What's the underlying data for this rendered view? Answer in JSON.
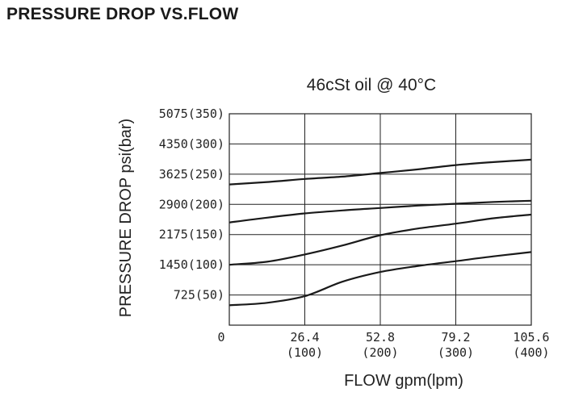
{
  "page": {
    "title": "PRESSURE DROP VS.FLOW"
  },
  "chart_data": {
    "type": "line",
    "title": "46cSt oil @ 40°C",
    "xlabel": "FLOW gpm(lpm)",
    "ylabel": "PRESSURE DROP psi(bar)",
    "xlim": [
      0,
      400
    ],
    "ylim": [
      0,
      350
    ],
    "grid": true,
    "legend": "none",
    "x_ticks": [
      {
        "value": 0,
        "primary": "0",
        "secondary": ""
      },
      {
        "value": 100,
        "primary": "26.4",
        "secondary": "(100)"
      },
      {
        "value": 200,
        "primary": "52.8",
        "secondary": "(200)"
      },
      {
        "value": 300,
        "primary": "79.2",
        "secondary": "(300)"
      },
      {
        "value": 400,
        "primary": "105.6",
        "secondary": "(400)"
      }
    ],
    "y_ticks": [
      {
        "value": 50,
        "label": "725(50)"
      },
      {
        "value": 100,
        "label": "1450(100)"
      },
      {
        "value": 150,
        "label": "2175(150)"
      },
      {
        "value": 200,
        "label": "2900(200)"
      },
      {
        "value": 250,
        "label": "3625(250)"
      },
      {
        "value": 300,
        "label": "4350(300)"
      },
      {
        "value": 350,
        "label": "5075(350)"
      }
    ],
    "x": [
      0,
      50,
      100,
      150,
      200,
      250,
      300,
      350,
      400
    ],
    "series": [
      {
        "values": [
          33,
          37,
          48,
          72,
          88,
          98,
          106,
          114,
          121
        ]
      },
      {
        "values": [
          100,
          105,
          117,
          132,
          149,
          160,
          168,
          177,
          183
        ]
      },
      {
        "values": [
          170,
          178,
          185,
          190,
          194,
          198,
          201,
          204,
          206
        ]
      },
      {
        "values": [
          233,
          237,
          242,
          246,
          252,
          258,
          265,
          270,
          274
        ]
      }
    ],
    "colors": {
      "line": "#1a1a1a",
      "grid": "#222222",
      "text": "#222222"
    }
  }
}
